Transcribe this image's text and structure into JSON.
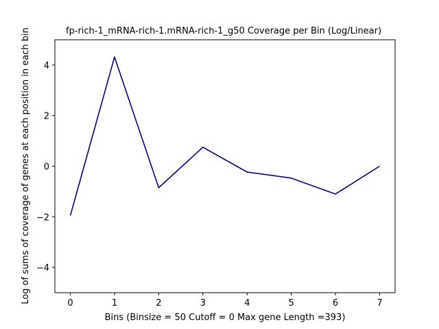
{
  "chart_data": {
    "type": "line",
    "title": "fp-rich-1_mRNA-rich-1.mRNA-rich-1_g50 Coverage per Bin (Log/Linear)",
    "xlabel": "Bins  (Binsize = 50 Cutoff = 0 Max gene Length =393)",
    "ylabel": "Log of sums of coverage of genes at each position in each bin",
    "x": [
      0,
      1,
      2,
      3,
      4,
      5,
      6,
      7
    ],
    "series": [
      {
        "values": [
          -1.95,
          4.32,
          -0.85,
          0.75,
          -0.23,
          -0.47,
          -1.1,
          0.0
        ]
      }
    ],
    "xlim": [
      -0.35,
      7.35
    ],
    "ylim": [
      -5.0,
      5.0
    ],
    "xticks": [
      0,
      1,
      2,
      3,
      4,
      5,
      6,
      7
    ],
    "yticks": [
      -4,
      -2,
      0,
      2,
      4
    ],
    "line_color": "#000080",
    "grid": false,
    "legend": "none"
  }
}
